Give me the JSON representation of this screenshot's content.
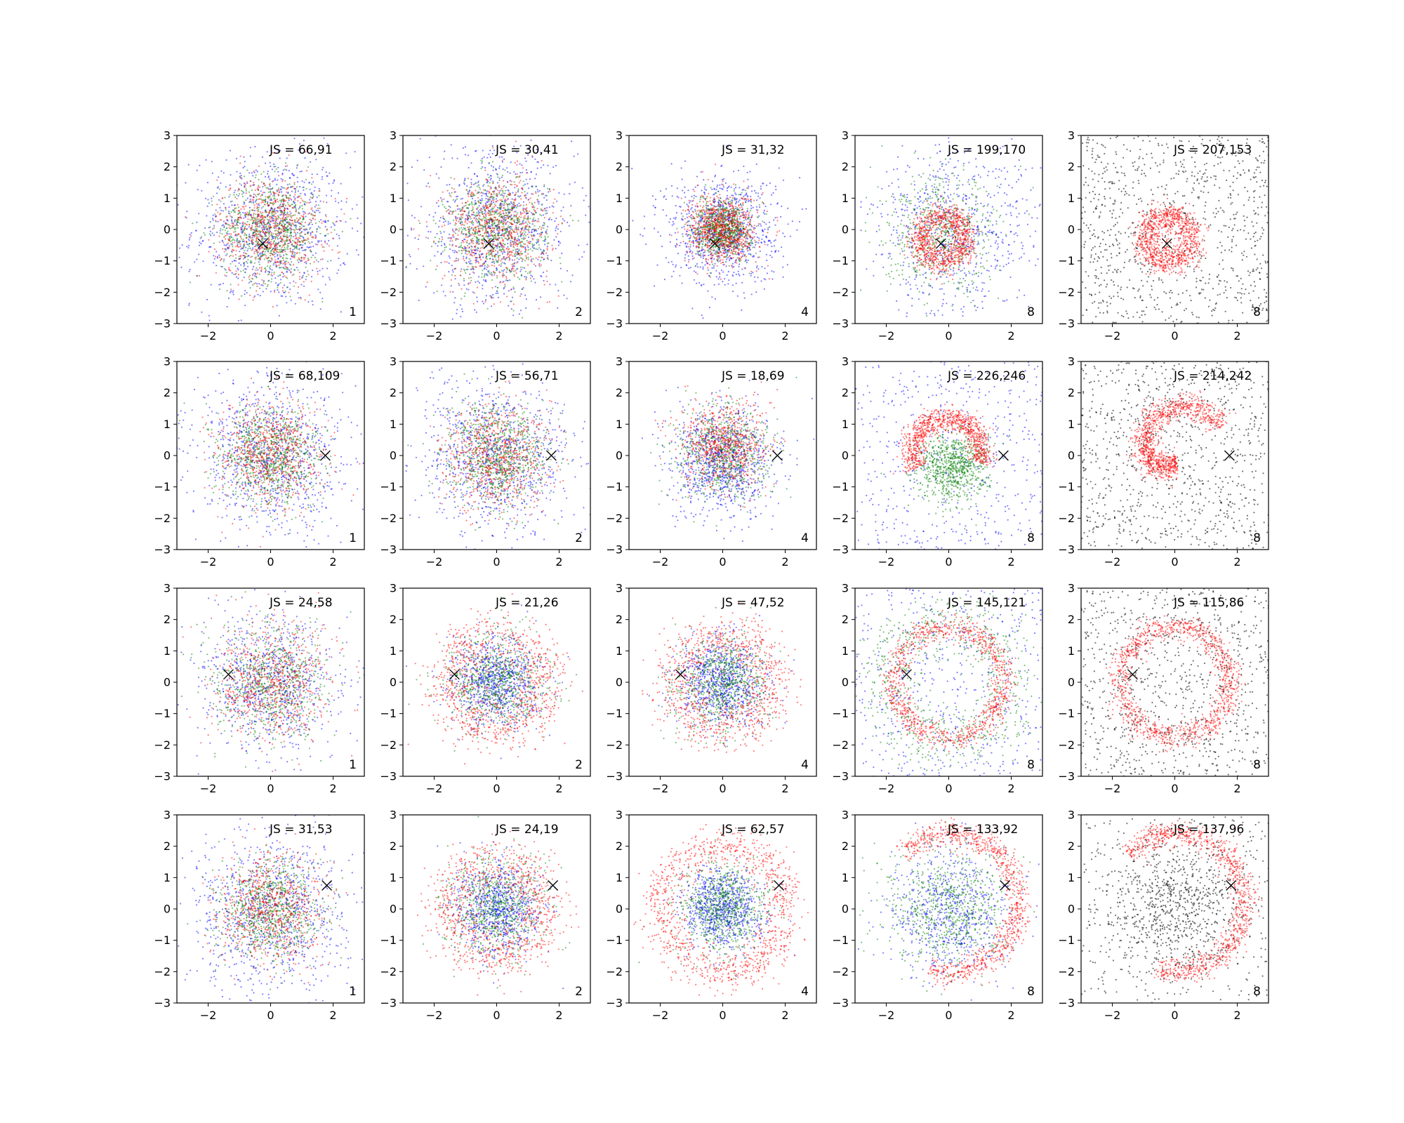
{
  "chart_data": {
    "type": "scatter",
    "rows": 4,
    "cols": 5,
    "xlim": [
      -3,
      3
    ],
    "ylim": [
      -3,
      3
    ],
    "xticks": [
      -2,
      0,
      2
    ],
    "yticks": [
      -3,
      -2,
      -1,
      0,
      1,
      2,
      3
    ],
    "colors": {
      "red": "#ff0000",
      "green": "#008000",
      "blue": "#0000ff",
      "black": "#000000"
    },
    "marker": "x",
    "panels": [
      {
        "label": "JS = 66,91",
        "corner": "1",
        "marker": [
          -0.25,
          -0.45
        ],
        "pattern": "gaussian"
      },
      {
        "label": "JS = 30,41",
        "corner": "2",
        "marker": [
          -0.25,
          -0.45
        ],
        "pattern": "gaussian"
      },
      {
        "label": "JS = 31,32",
        "corner": "4",
        "marker": [
          -0.25,
          -0.45
        ],
        "pattern": "compact"
      },
      {
        "label": "JS = 199,170",
        "corner": "8",
        "marker": [
          -0.25,
          -0.45
        ],
        "pattern": "ring-small"
      },
      {
        "label": "JS = 207,153",
        "corner": "8",
        "marker": [
          -0.25,
          -0.45
        ],
        "pattern": "ring-small-black"
      },
      {
        "label": "JS = 68,109",
        "corner": "1",
        "marker": [
          1.75,
          0.0
        ],
        "pattern": "gaussian"
      },
      {
        "label": "JS = 56,71",
        "corner": "2",
        "marker": [
          1.75,
          0.0
        ],
        "pattern": "gaussian"
      },
      {
        "label": "JS = 18,69",
        "corner": "4",
        "marker": [
          1.75,
          0.0
        ],
        "pattern": "red-top"
      },
      {
        "label": "JS = 226,246",
        "corner": "8",
        "marker": [
          1.75,
          0.0
        ],
        "pattern": "arc-top"
      },
      {
        "label": "JS = 214,242",
        "corner": "8",
        "marker": [
          1.75,
          0.0
        ],
        "pattern": "arc-spiral-black"
      },
      {
        "label": "JS = 24,58",
        "corner": "1",
        "marker": [
          -1.35,
          0.25
        ],
        "pattern": "gaussian-wide"
      },
      {
        "label": "JS = 21,26",
        "corner": "2",
        "marker": [
          -1.35,
          0.25
        ],
        "pattern": "red-outer"
      },
      {
        "label": "JS = 47,52",
        "corner": "4",
        "marker": [
          -1.35,
          0.25
        ],
        "pattern": "red-outer"
      },
      {
        "label": "JS = 145,121",
        "corner": "8",
        "marker": [
          -1.35,
          0.25
        ],
        "pattern": "ring-large"
      },
      {
        "label": "JS = 115,86",
        "corner": "8",
        "marker": [
          -1.35,
          0.25
        ],
        "pattern": "ring-large-black"
      },
      {
        "label": "JS = 31,53",
        "corner": "1",
        "marker": [
          1.8,
          0.75
        ],
        "pattern": "gaussian"
      },
      {
        "label": "JS = 24,19",
        "corner": "2",
        "marker": [
          1.8,
          0.75
        ],
        "pattern": "red-outer"
      },
      {
        "label": "JS = 62,57",
        "corner": "4",
        "marker": [
          1.8,
          0.75
        ],
        "pattern": "red-outer-wide"
      },
      {
        "label": "JS = 133,92",
        "corner": "8",
        "marker": [
          1.8,
          0.75
        ],
        "pattern": "arc-right"
      },
      {
        "label": "JS = 137,96",
        "corner": "8",
        "marker": [
          1.8,
          0.75
        ],
        "pattern": "arc-right-black"
      }
    ]
  }
}
